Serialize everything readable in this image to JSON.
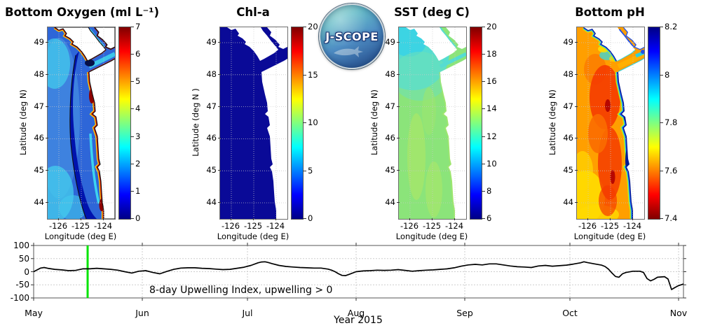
{
  "logo": {
    "label": "J-SCOPE"
  },
  "colors": {
    "background": "#ffffff",
    "land": "#ffffff",
    "jet_low": "#000085",
    "jet_high": "#800000",
    "marker_green": "#00e400",
    "upwelling_line": "#000000",
    "chl_ocean": "#0a0a97"
  },
  "chart_data": [
    {
      "type": "heatmap",
      "title": "Bottom Oxygen (ml L⁻¹)",
      "xlabel": "Longitude (deg E)",
      "ylabel": "Latitude (deg N)",
      "x_ticks": [
        "-126",
        "-125",
        "-124"
      ],
      "y_ticks": [
        "49",
        "48",
        "47",
        "46",
        "45",
        "44"
      ],
      "colorbar": {
        "min": 0,
        "max": 7,
        "tick_labels": [
          "7",
          "6",
          "5",
          "4",
          "3",
          "2",
          "1",
          "0"
        ],
        "colormap": "jet",
        "orientation": "vertical"
      },
      "summary": "Low-oxygen (dark blue) band along shelf, high oxygen (red) fringe at coast, black coastline/contour; land white"
    },
    {
      "type": "heatmap",
      "title": "Chl-a",
      "xlabel": "Longitude (deg E)",
      "ylabel": "Latitude (deg N )",
      "x_ticks": [
        "-126",
        "-125",
        "-124"
      ],
      "y_ticks": [
        "49",
        "48",
        "47",
        "46",
        "45",
        "44"
      ],
      "colorbar": {
        "min": 0,
        "max": 20,
        "tick_labels": [
          "20",
          "15",
          "10",
          "5",
          "0"
        ],
        "colormap": "jet",
        "orientation": "vertical"
      },
      "summary": "Uniform near-zero chlorophyll (dark navy ocean); land white"
    },
    {
      "type": "heatmap",
      "title": "SST (deg C)",
      "xlabel": "Longitude (deg E)",
      "ylabel": "Latitude (deg N)",
      "x_ticks": [
        "-126",
        "-125",
        "-124"
      ],
      "y_ticks": [
        "49",
        "48",
        "47",
        "46",
        "45",
        "44"
      ],
      "colorbar": {
        "min": 6,
        "max": 20,
        "tick_labels": [
          "20",
          "18",
          "16",
          "14",
          "12",
          "10",
          "8",
          "6"
        ],
        "colormap": "jet",
        "orientation": "vertical"
      },
      "summary": "Mostly 12-13 C (light green) with cooler cyan water in the north near Vancouver Island"
    },
    {
      "type": "heatmap",
      "title": "Bottom pH",
      "xlabel": "Longitude (deg E)",
      "ylabel": "Latitude (deg N)",
      "x_ticks": [
        "-126",
        "-125",
        "-124"
      ],
      "y_ticks": [
        "49",
        "48",
        "47",
        "46",
        "45",
        "44"
      ],
      "colorbar": {
        "min": 7.4,
        "max": 8.2,
        "tick_labels": [
          "8.2",
          "8",
          "7.8",
          "7.6",
          "7.4"
        ],
        "colormap": "jet reversed",
        "orientation": "vertical"
      },
      "summary": "Low pH (orange/red) offshore bottom water with high pH (blue) band hugging the coast"
    },
    {
      "type": "line",
      "name": "8-day Upwelling Index",
      "xlabel": "Year 2015",
      "x_tick_labels": [
        "May",
        "Jun",
        "Jul",
        "Aug",
        "Sep",
        "Oct",
        "Nov"
      ],
      "x_tick_days": [
        0,
        31,
        61,
        92,
        123,
        153,
        184
      ],
      "ylim": [
        -100,
        100
      ],
      "y_ticks": [
        100,
        50,
        0,
        -50,
        -100
      ],
      "grid": true,
      "annotation": "8-day Upwelling Index, upwelling > 0",
      "marker_day": 15.4,
      "marker_color": "#00e400",
      "line_color": "#000000",
      "series": [
        {
          "name": "8-day Upwelling Index",
          "points": [
            [
              0,
              0
            ],
            [
              1,
              7
            ],
            [
              2,
              14
            ],
            [
              3,
              16
            ],
            [
              4,
              13
            ],
            [
              6,
              9
            ],
            [
              8,
              7
            ],
            [
              10,
              4
            ],
            [
              12,
              5
            ],
            [
              14,
              11
            ],
            [
              16,
              11
            ],
            [
              18,
              13
            ],
            [
              20,
              11
            ],
            [
              22,
              9
            ],
            [
              24,
              6
            ],
            [
              26,
              0
            ],
            [
              28,
              -5
            ],
            [
              30,
              2
            ],
            [
              32,
              4
            ],
            [
              34,
              -3
            ],
            [
              36,
              -8
            ],
            [
              38,
              1
            ],
            [
              40,
              9
            ],
            [
              42,
              14
            ],
            [
              44,
              15
            ],
            [
              46,
              15
            ],
            [
              48,
              13
            ],
            [
              50,
              12
            ],
            [
              52,
              10
            ],
            [
              54,
              8
            ],
            [
              56,
              9
            ],
            [
              58,
              13
            ],
            [
              60,
              17
            ],
            [
              62,
              24
            ],
            [
              64,
              34
            ],
            [
              65,
              37
            ],
            [
              66,
              38
            ],
            [
              67,
              35
            ],
            [
              68,
              31
            ],
            [
              70,
              24
            ],
            [
              72,
              20
            ],
            [
              74,
              18
            ],
            [
              76,
              16
            ],
            [
              78,
              15
            ],
            [
              80,
              14
            ],
            [
              82,
              14
            ],
            [
              84,
              10
            ],
            [
              85,
              6
            ],
            [
              86,
              0
            ],
            [
              87,
              -8
            ],
            [
              88,
              -14
            ],
            [
              89,
              -15
            ],
            [
              90,
              -10
            ],
            [
              92,
              0
            ],
            [
              94,
              3
            ],
            [
              96,
              4
            ],
            [
              98,
              6
            ],
            [
              100,
              5
            ],
            [
              102,
              6
            ],
            [
              104,
              8
            ],
            [
              106,
              5
            ],
            [
              108,
              2
            ],
            [
              110,
              4
            ],
            [
              112,
              6
            ],
            [
              114,
              7
            ],
            [
              116,
              9
            ],
            [
              118,
              11
            ],
            [
              120,
              15
            ],
            [
              122,
              21
            ],
            [
              124,
              26
            ],
            [
              126,
              28
            ],
            [
              128,
              26
            ],
            [
              130,
              30
            ],
            [
              132,
              30
            ],
            [
              134,
              26
            ],
            [
              136,
              22
            ],
            [
              138,
              19
            ],
            [
              140,
              18
            ],
            [
              142,
              16
            ],
            [
              144,
              22
            ],
            [
              146,
              24
            ],
            [
              148,
              21
            ],
            [
              150,
              23
            ],
            [
              152,
              25
            ],
            [
              154,
              29
            ],
            [
              156,
              34
            ],
            [
              157,
              38
            ],
            [
              158,
              35
            ],
            [
              160,
              30
            ],
            [
              162,
              25
            ],
            [
              163,
              20
            ],
            [
              164,
              10
            ],
            [
              165,
              -5
            ],
            [
              166,
              -18
            ],
            [
              167,
              -21
            ],
            [
              168,
              -8
            ],
            [
              169,
              -3
            ],
            [
              171,
              2
            ],
            [
              173,
              2
            ],
            [
              174,
              -3
            ],
            [
              175,
              -26
            ],
            [
              176,
              -35
            ],
            [
              177,
              -29
            ],
            [
              178,
              -21
            ],
            [
              180,
              -19
            ],
            [
              181,
              -28
            ],
            [
              182,
              -68
            ],
            [
              183,
              -60
            ],
            [
              184,
              -53
            ],
            [
              185.4,
              -47
            ]
          ]
        }
      ]
    }
  ]
}
